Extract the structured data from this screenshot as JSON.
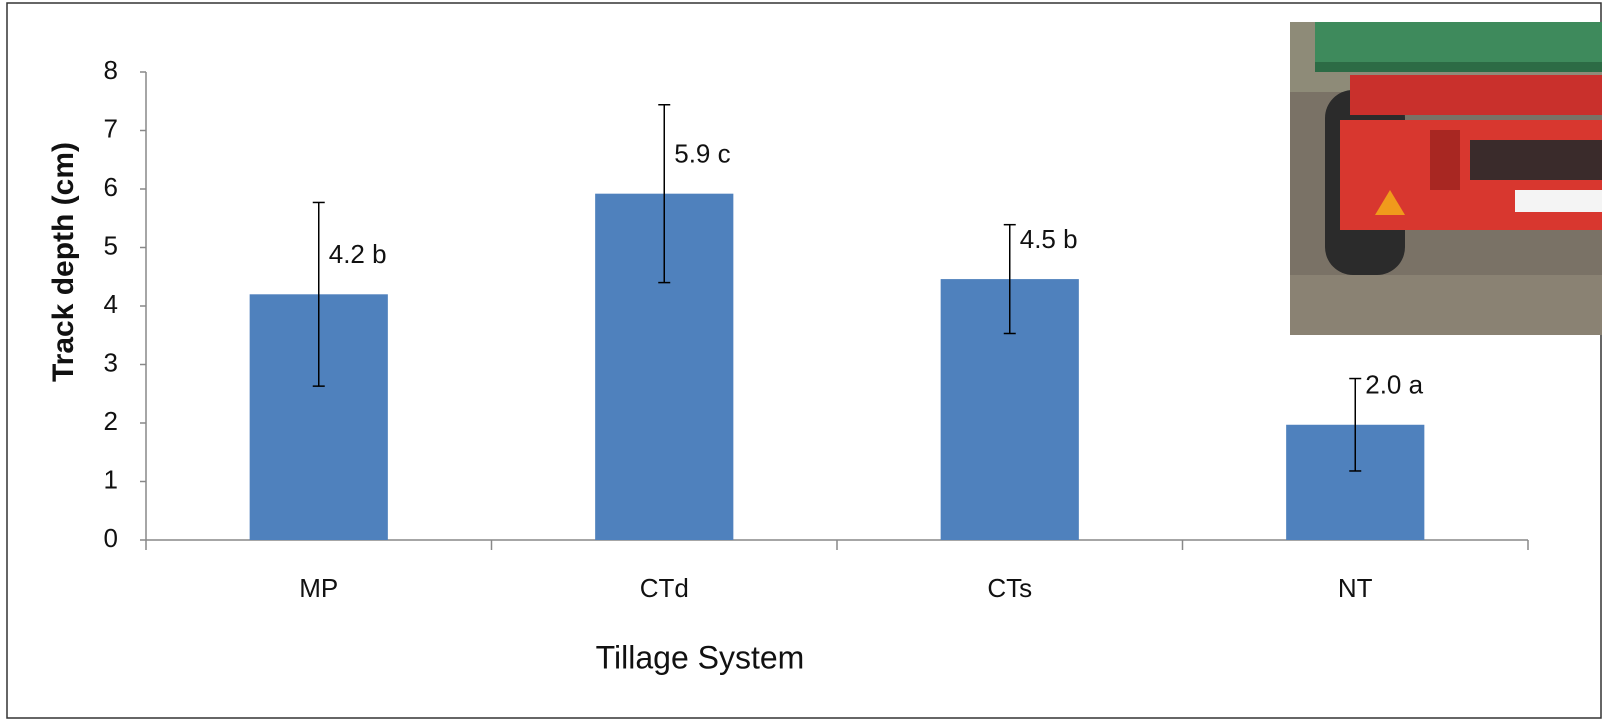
{
  "chart_data": {
    "type": "bar",
    "x_label": "Tillage System",
    "y_label": "Track depth (cm)",
    "categories": [
      "MP",
      "CTd",
      "CTs",
      "NT"
    ],
    "values": [
      4.2,
      5.92,
      4.46,
      1.97
    ],
    "errors": [
      1.57,
      1.52,
      0.93,
      0.79
    ],
    "value_labels": [
      "4.2 b",
      "5.9 c",
      "4.5 b",
      "2.0 a"
    ],
    "color": "#4f81bd",
    "ylim": [
      0,
      8
    ],
    "yticks": [
      0,
      1,
      2,
      3,
      4,
      5,
      6,
      7,
      8
    ],
    "grid": false
  }
}
